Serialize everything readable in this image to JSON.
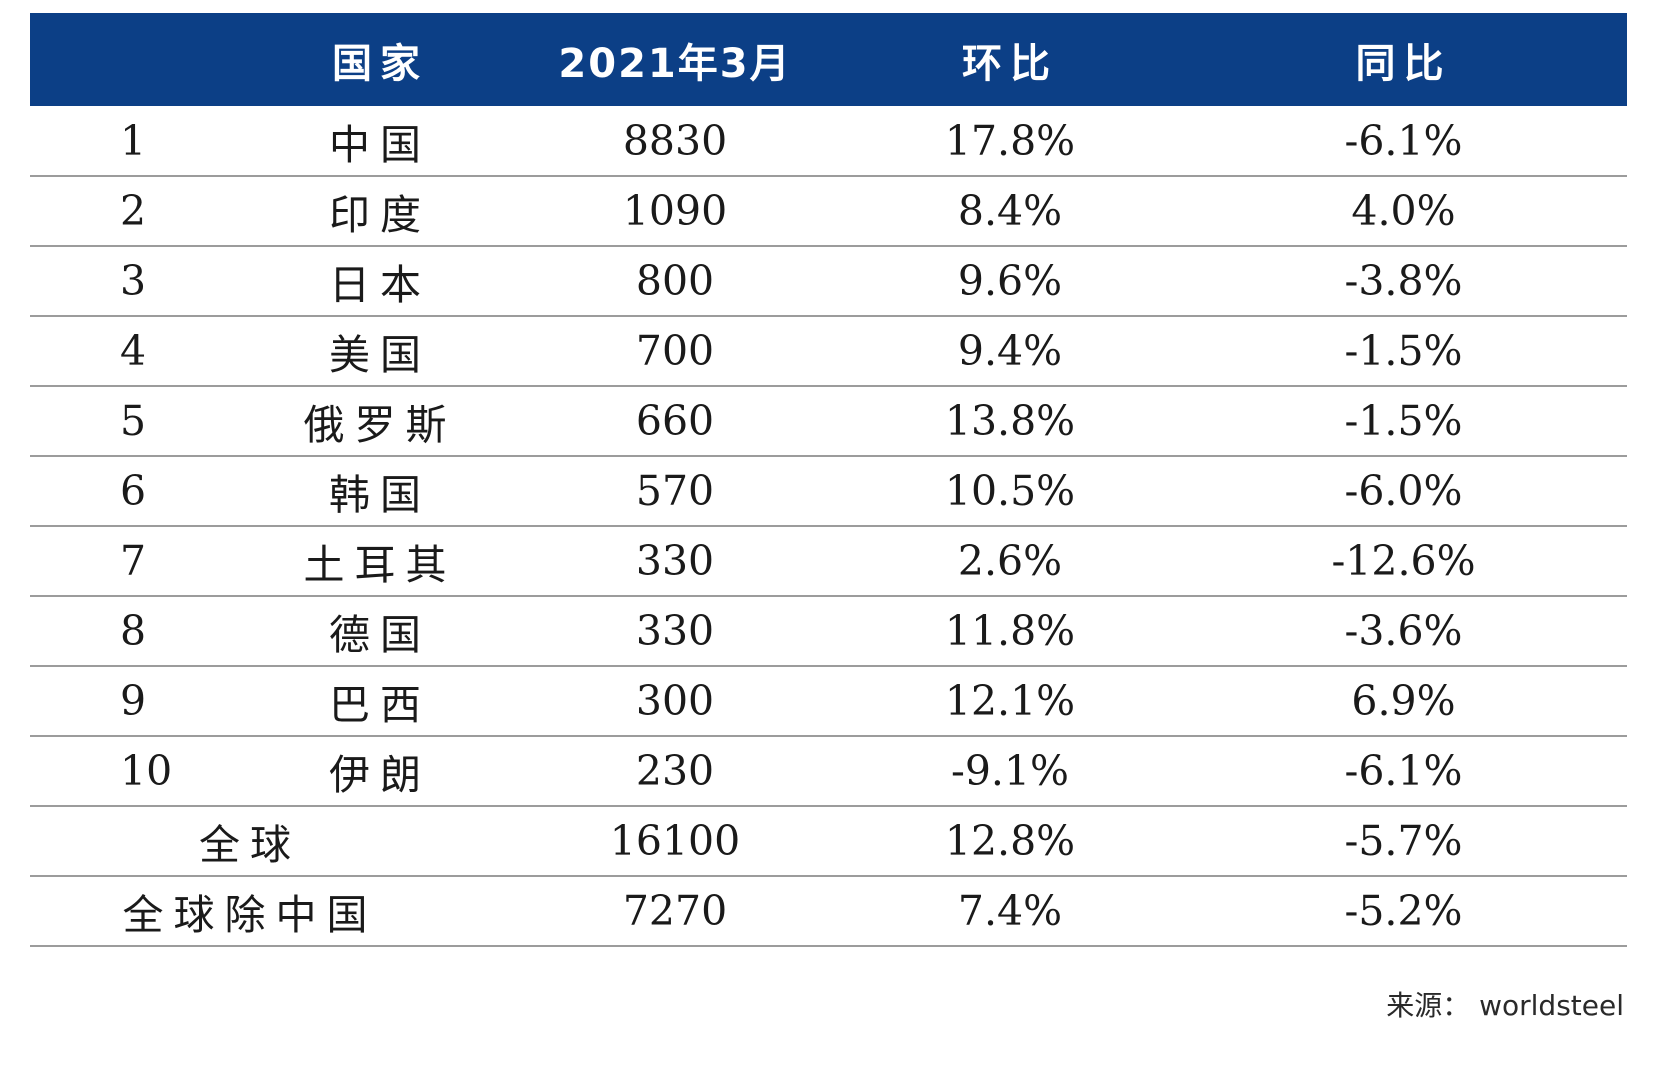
{
  "table": {
    "headers": {
      "rank": "",
      "country": "国家",
      "volume": "2021年3月",
      "mom": "环比",
      "yoy": "同比"
    },
    "rows": [
      {
        "rank": "1",
        "country": "中国",
        "volume": "8830",
        "mom": "17.8%",
        "yoy": "-6.1%"
      },
      {
        "rank": "2",
        "country": "印度",
        "volume": "1090",
        "mom": "8.4%",
        "yoy": "4.0%"
      },
      {
        "rank": "3",
        "country": "日本",
        "volume": "800",
        "mom": "9.6%",
        "yoy": "-3.8%"
      },
      {
        "rank": "4",
        "country": "美国",
        "volume": "700",
        "mom": "9.4%",
        "yoy": "-1.5%"
      },
      {
        "rank": "5",
        "country": "俄罗斯",
        "volume": "660",
        "mom": "13.8%",
        "yoy": "-1.5%"
      },
      {
        "rank": "6",
        "country": "韩国",
        "volume": "570",
        "mom": "10.5%",
        "yoy": "-6.0%"
      },
      {
        "rank": "7",
        "country": "土耳其",
        "volume": "330",
        "mom": "2.6%",
        "yoy": "-12.6%"
      },
      {
        "rank": "8",
        "country": "德国",
        "volume": "330",
        "mom": "11.8%",
        "yoy": "-3.6%"
      },
      {
        "rank": "9",
        "country": "巴西",
        "volume": "300",
        "mom": "12.1%",
        "yoy": "6.9%"
      },
      {
        "rank": "10",
        "country": "伊朗",
        "volume": "230",
        "mom": "-9.1%",
        "yoy": "-6.1%"
      }
    ],
    "summary_rows": [
      {
        "label": "全球",
        "volume": "16100",
        "mom": "12.8%",
        "yoy": "-5.7%"
      },
      {
        "label": "全球除中国",
        "volume": "7270",
        "mom": "7.4%",
        "yoy": "-5.2%"
      }
    ]
  },
  "source": "来源： worldsteel",
  "colors": {
    "header_bg": "#0c3f86",
    "header_text": "#ffffff",
    "row_divider": "#9c9c9c"
  }
}
